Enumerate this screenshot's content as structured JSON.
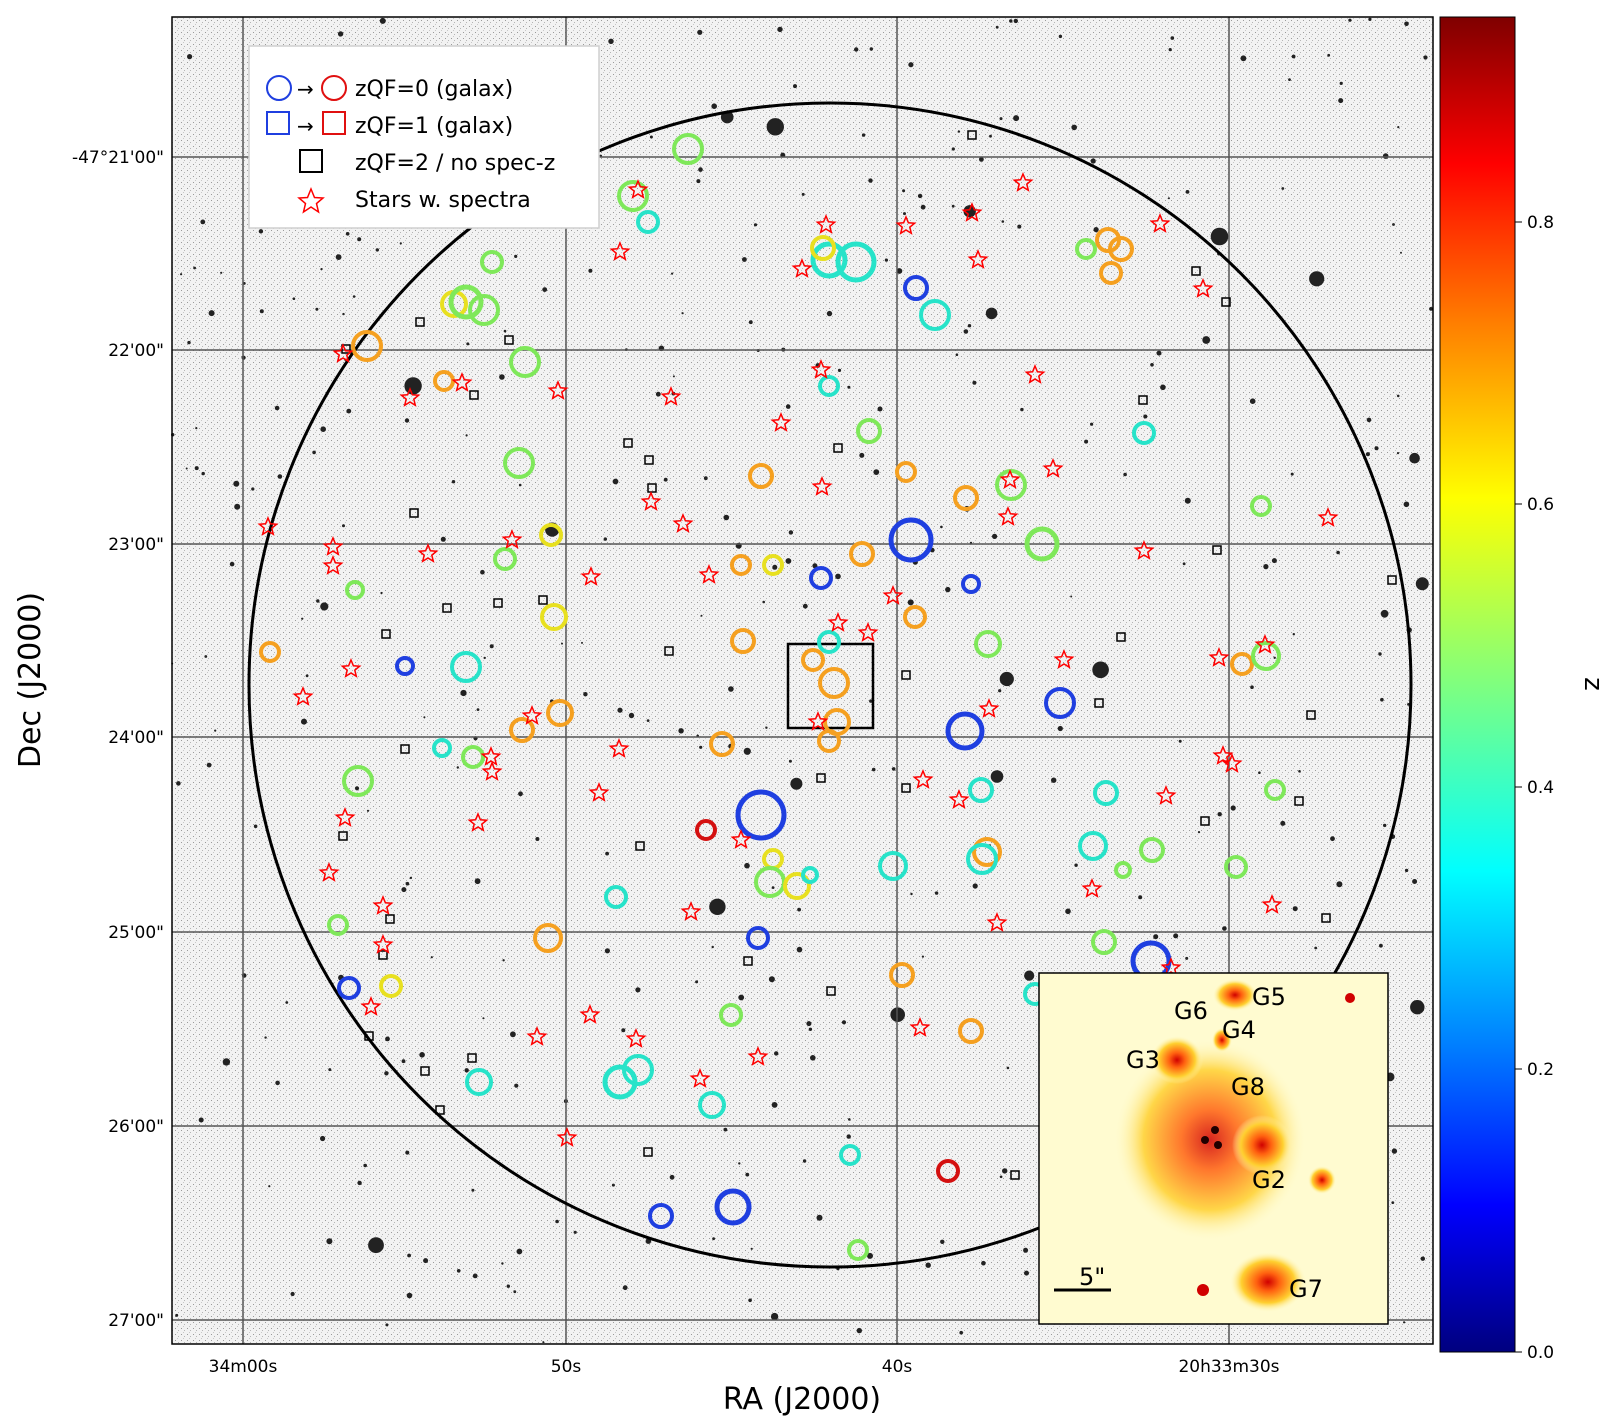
{
  "axes": {
    "xlabel": "RA (J2000)",
    "ylabel": "Dec (J2000)",
    "xticks": [
      "34m00s",
      "50s",
      "40s",
      "20h33m30s"
    ],
    "yticks": [
      "-47°21'00\"",
      "22'00\"",
      "23'00\"",
      "24'00\"",
      "25'00\"",
      "26'00\"",
      "27'00\""
    ]
  },
  "legend": {
    "entries": [
      {
        "arrow": "→",
        "label": "zQF=0 (galax)"
      },
      {
        "arrow": "→",
        "label": "zQF=1 (galax)"
      },
      {
        "arrow": "",
        "label": "zQF=2 / no spec-z"
      },
      {
        "arrow": "",
        "label": "Stars w. spectra"
      }
    ]
  },
  "colorbar": {
    "label": "z",
    "ticks": [
      "0.0",
      "0.2",
      "0.4",
      "0.6",
      "0.8"
    ],
    "colormap": "jet",
    "range": [
      0.0,
      0.95
    ]
  },
  "inset": {
    "labels": [
      "G5",
      "G6",
      "G4",
      "G3",
      "G8",
      "G2",
      "G7"
    ],
    "scalebar": "5\""
  },
  "colors": {
    "blue": "#1f3fe0",
    "cyan": "#27e3c9",
    "green": "#7fe85a",
    "yellow": "#e8e020",
    "orange": "#f5a020",
    "red": "#d41010",
    "star": "#ff0000"
  }
}
